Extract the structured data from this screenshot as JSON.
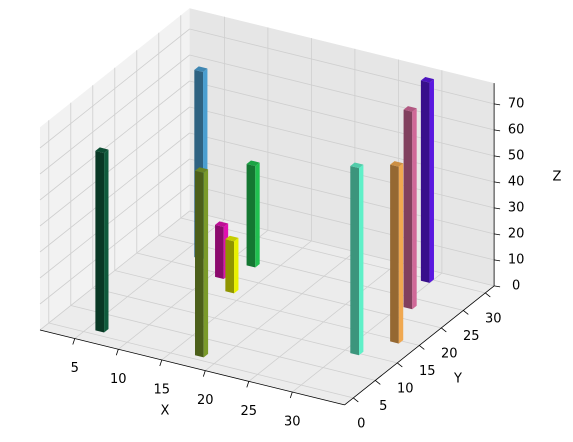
{
  "chart_data": {
    "type": "bar3d",
    "x": [
      5.9,
      6.5,
      17.4,
      10.5,
      13.0,
      12.0,
      30.8,
      33.0,
      30.4,
      29.0
    ],
    "y": [
      0.9,
      22.2,
      0.8,
      19.0,
      16.4,
      23.2,
      9.6,
      14.3,
      22.5,
      29.2
    ],
    "values": [
      69,
      72,
      71,
      20,
      20,
      39,
      72,
      68,
      76,
      77
    ],
    "colors": [
      "#0f5a3c",
      "#4a9ed0",
      "#7a9a2a",
      "#e010b0",
      "#e8f000",
      "#20c050",
      "#60f0c8",
      "#f0a850",
      "#d06898",
      "#5a18e0"
    ],
    "xlim": [
      1,
      36
    ],
    "ylim": [
      -2,
      32
    ],
    "zlim": [
      0,
      78
    ],
    "xticks": [
      5,
      10,
      15,
      20,
      25,
      30
    ],
    "yticks": [
      0,
      5,
      10,
      15,
      20,
      25,
      30
    ],
    "zticks": [
      0,
      10,
      20,
      30,
      40,
      50,
      60,
      70
    ],
    "x_label": "X",
    "y_label": "Y",
    "z_label": "Z",
    "grid": true
  }
}
